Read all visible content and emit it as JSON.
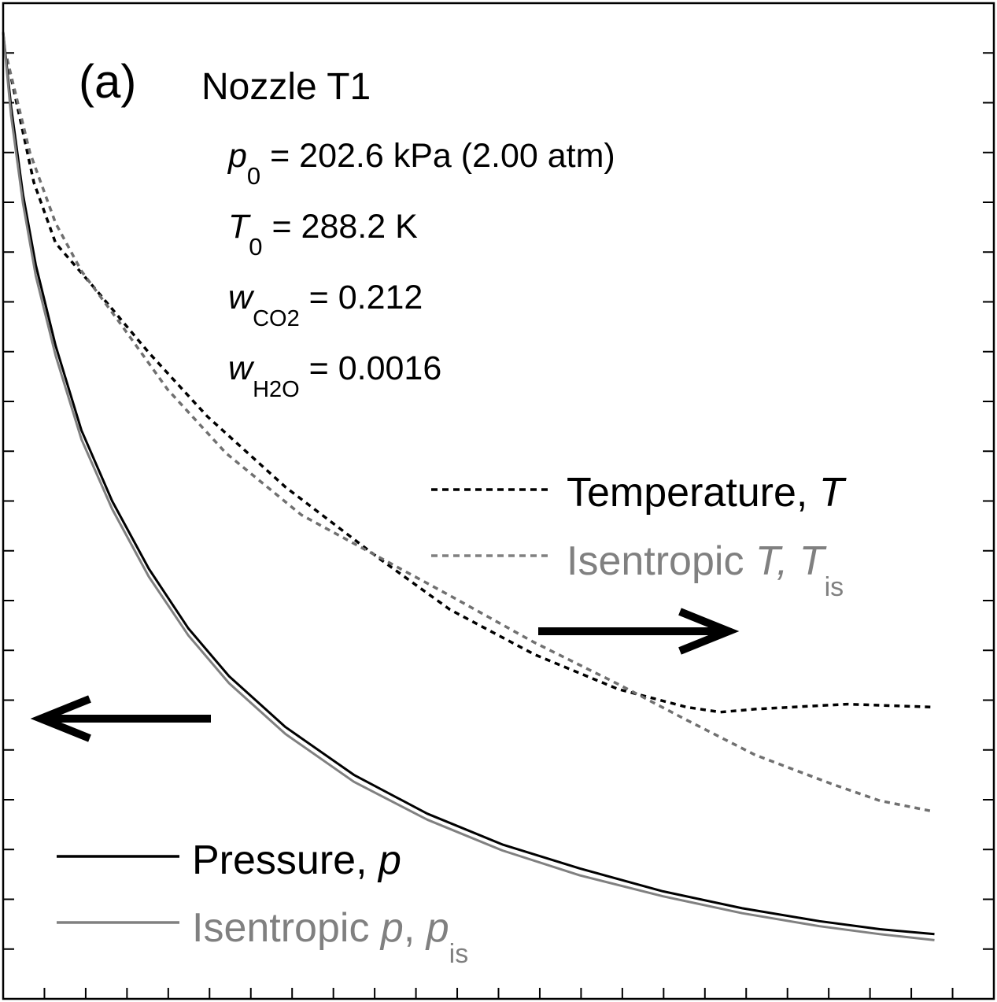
{
  "chart_data": {
    "type": "line",
    "panel_label": "(a)",
    "title": "Nozzle T1",
    "conditions": [
      {
        "symbol": "p",
        "subscript": "0",
        "value": " = 202.6 kPa (2.00 atm)"
      },
      {
        "symbol": "T",
        "subscript": "0",
        "value": " = 288.2 K"
      },
      {
        "symbol": "w",
        "subscript": "CO2",
        "value": " = 0.212"
      },
      {
        "symbol": "w",
        "subscript": "H2O",
        "value": " = 0.0016"
      }
    ],
    "legend": {
      "temperature": {
        "prefix": "Temperature, ",
        "symbol": "T",
        "subscript": ""
      },
      "isentropic_temperature": {
        "prefix": "Isentropic ",
        "symbol": "T",
        "mid": ", ",
        "symbol2": "T",
        "subscript": "is"
      },
      "pressure": {
        "prefix": "Pressure, ",
        "symbol": "p",
        "subscript": ""
      },
      "isentropic_pressure": {
        "prefix": "Isentropic ",
        "symbol": "p",
        "mid": ", ",
        "symbol2": "p",
        "subscript": "is"
      }
    },
    "arrows": [
      {
        "direction": "left",
        "meaning": "pressure curves refer to left axis"
      },
      {
        "direction": "right",
        "meaning": "temperature curves refer to right axis"
      }
    ],
    "xlim": [
      0,
      100
    ],
    "ylim": [
      0,
      100
    ],
    "x_ticks": 23,
    "y_ticks": 19,
    "grid": false,
    "series": [
      {
        "key": "temperature",
        "style": "dotted",
        "color": "#000000",
        "axis": "right",
        "points": [
          [
            0.4,
            94.4
          ],
          [
            3.1,
            82.0
          ],
          [
            5.3,
            75.9
          ],
          [
            9.3,
            71.3
          ],
          [
            14.7,
            64.9
          ],
          [
            20.6,
            58.5
          ],
          [
            28.5,
            51.4
          ],
          [
            38.0,
            44.2
          ],
          [
            45.1,
            39.1
          ],
          [
            53.6,
            34.6
          ],
          [
            62.1,
            31.1
          ],
          [
            69.0,
            29.3
          ],
          [
            72.4,
            28.8
          ],
          [
            75.9,
            29.1
          ],
          [
            85.2,
            29.6
          ],
          [
            94.0,
            29.3
          ]
        ]
      },
      {
        "key": "isentropic_temperature",
        "style": "dotted",
        "color": "#707070",
        "axis": "right",
        "points": [
          [
            0.4,
            94.4
          ],
          [
            2.7,
            85.0
          ],
          [
            5.3,
            77.9
          ],
          [
            7.9,
            73.1
          ],
          [
            11.7,
            68.0
          ],
          [
            16.6,
            61.2
          ],
          [
            22.5,
            54.8
          ],
          [
            30.1,
            48.6
          ],
          [
            37.5,
            44.6
          ],
          [
            45.1,
            40.5
          ],
          [
            53.6,
            35.8
          ],
          [
            62.1,
            31.6
          ],
          [
            69.0,
            28.0
          ],
          [
            75.9,
            24.5
          ],
          [
            83.6,
            21.6
          ],
          [
            88.5,
            19.9
          ],
          [
            94.0,
            18.8
          ]
        ]
      },
      {
        "key": "pressure",
        "style": "solid",
        "color": "#000000",
        "axis": "left",
        "points": [
          [
            0.0,
            97.1
          ],
          [
            0.8,
            89.6
          ],
          [
            2.0,
            80.8
          ],
          [
            3.3,
            73.7
          ],
          [
            5.3,
            65.6
          ],
          [
            7.9,
            57.1
          ],
          [
            11.0,
            50.0
          ],
          [
            14.7,
            43.2
          ],
          [
            18.7,
            37.2
          ],
          [
            22.8,
            32.4
          ],
          [
            28.5,
            27.3
          ],
          [
            35.4,
            22.5
          ],
          [
            42.8,
            18.6
          ],
          [
            50.4,
            15.5
          ],
          [
            58.2,
            13.1
          ],
          [
            66.6,
            10.8
          ],
          [
            74.6,
            9.1
          ],
          [
            82.4,
            7.8
          ],
          [
            88.5,
            7.0
          ],
          [
            94.0,
            6.5
          ]
        ]
      },
      {
        "key": "isentropic_pressure",
        "style": "solid",
        "color": "#808080",
        "axis": "left",
        "points": [
          [
            0.0,
            97.1
          ],
          [
            0.8,
            88.7
          ],
          [
            2.0,
            79.9
          ],
          [
            3.3,
            72.6
          ],
          [
            5.3,
            64.6
          ],
          [
            7.9,
            56.2
          ],
          [
            11.0,
            49.2
          ],
          [
            14.7,
            42.4
          ],
          [
            18.7,
            36.5
          ],
          [
            22.8,
            31.7
          ],
          [
            28.5,
            26.6
          ],
          [
            35.4,
            21.8
          ],
          [
            42.8,
            18.0
          ],
          [
            50.4,
            14.9
          ],
          [
            58.2,
            12.4
          ],
          [
            66.6,
            10.3
          ],
          [
            74.6,
            8.6
          ],
          [
            82.4,
            7.3
          ],
          [
            88.5,
            6.5
          ],
          [
            94.0,
            5.9
          ]
        ]
      }
    ]
  }
}
